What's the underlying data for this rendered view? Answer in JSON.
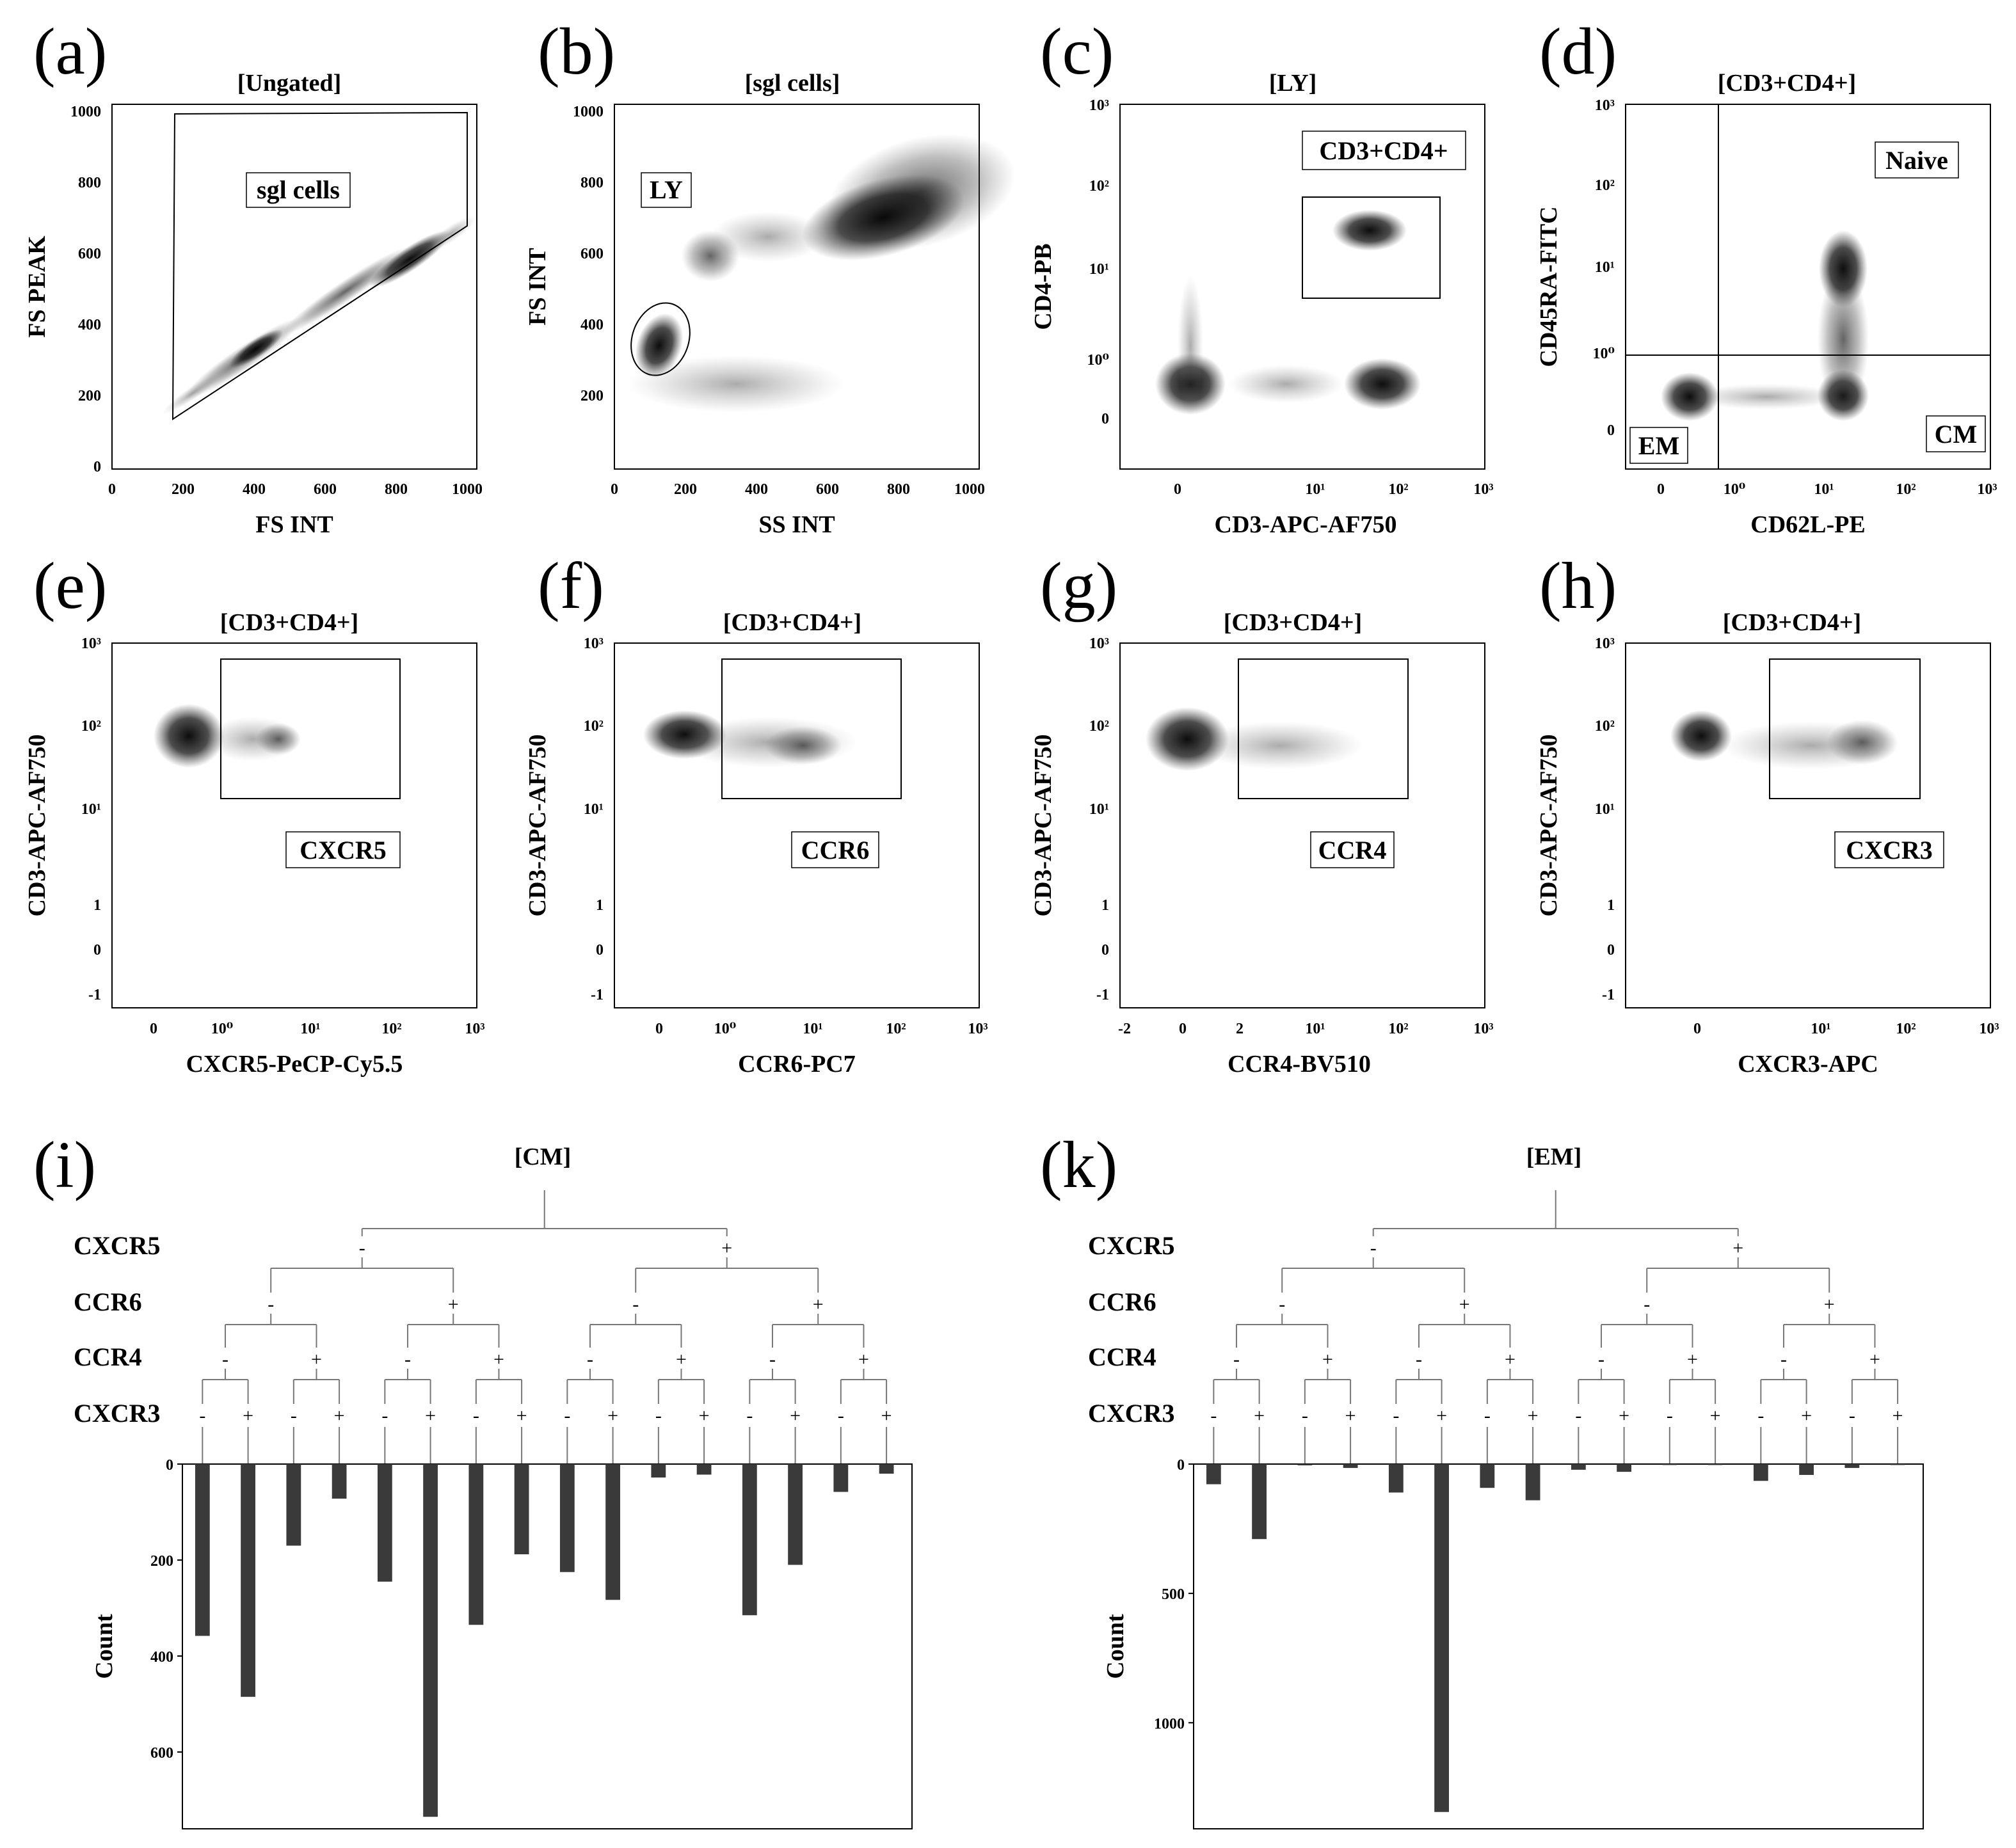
{
  "figure": {
    "panels": {
      "a": {
        "letter": "(a)",
        "title": "[Ungated]",
        "xlabel": "FS INT",
        "ylabel": "FS PEAK",
        "gate": "sgl cells",
        "xticks": [
          "0",
          "200",
          "400",
          "600",
          "800",
          "1000"
        ],
        "yticks": [
          "0",
          "200",
          "400",
          "600",
          "800",
          "1000"
        ]
      },
      "b": {
        "letter": "(b)",
        "title": "[sgl cells]",
        "xlabel": "SS INT",
        "ylabel": "FS INT",
        "gate": "LY",
        "xticks": [
          "0",
          "200",
          "400",
          "600",
          "800",
          "1000"
        ],
        "yticks": [
          "200",
          "400",
          "600",
          "800",
          "1000"
        ]
      },
      "c": {
        "letter": "(c)",
        "title": "[LY]",
        "xlabel": "CD3-APC-AF750",
        "ylabel": "CD4-PB",
        "gate": "CD3+CD4+",
        "xticks": [
          "0",
          "10¹",
          "10²",
          "10³"
        ],
        "yticks": [
          "0",
          "10⁰",
          "10¹",
          "10²",
          "10³"
        ]
      },
      "d": {
        "letter": "(d)",
        "title": "[CD3+CD4+]",
        "xlabel": "CD62L-PE",
        "ylabel": "CD45RA-FITC",
        "gates": [
          "Naive",
          "EM",
          "CM"
        ],
        "xticks": [
          "0",
          "10⁰",
          "10¹",
          "10²",
          "10³"
        ],
        "yticks": [
          "0",
          "10⁰",
          "10¹",
          "10²",
          "10³"
        ]
      },
      "e": {
        "letter": "(e)",
        "title": "[CD3+CD4+]",
        "xlabel": "CXCR5-PeCP-Cy5.5",
        "ylabel": "CD3-APC-AF750",
        "gate": "CXCR5",
        "xticks": [
          "0",
          "10⁰",
          "10¹",
          "10²",
          "10³"
        ],
        "yticks": [
          "-1",
          "0",
          "1",
          "10¹",
          "10²",
          "10³"
        ]
      },
      "f": {
        "letter": "(f)",
        "title": "[CD3+CD4+]",
        "xlabel": "CCR6-PC7",
        "ylabel": "CD3-APC-AF750",
        "gate": "CCR6",
        "xticks": [
          "0",
          "10⁰",
          "10¹",
          "10²",
          "10³"
        ],
        "yticks": [
          "-1",
          "0",
          "1",
          "10¹",
          "10²",
          "10³"
        ]
      },
      "g": {
        "letter": "(g)",
        "title": "[CD3+CD4+]",
        "xlabel": "CCR4-BV510",
        "ylabel": "CD3-APC-AF750",
        "gate": "CCR4",
        "xticks": [
          "-2",
          "0",
          "2",
          "10¹",
          "10²",
          "10³"
        ],
        "yticks": [
          "-1",
          "0",
          "1",
          "10¹",
          "10²",
          "10³"
        ]
      },
      "h": {
        "letter": "(h)",
        "title": "[CD3+CD4+]",
        "xlabel": "CXCR3-APC",
        "ylabel": "CD3-APC-AF750",
        "gate": "CXCR3",
        "xticks": [
          "0",
          "10¹",
          "10²",
          "10³"
        ],
        "yticks": [
          "-1",
          "0",
          "1",
          "10¹",
          "10²",
          "10³"
        ]
      }
    },
    "tree_levels": [
      "CXCR5",
      "CCR6",
      "CCR4",
      "CXCR3"
    ],
    "signs": {
      "neg": "-",
      "pos": "+"
    }
  },
  "chart_data": [
    {
      "type": "bar",
      "panel": "i",
      "letter": "(i)",
      "title": "[CM]",
      "ylabel": "Count",
      "orientation": "downward",
      "ylim": [
        0,
        760
      ],
      "yticks": [
        0,
        200,
        400,
        600
      ],
      "categories": [
        "-/-/-/-",
        "-/-/-/+",
        "-/-/+/-",
        "-/-/+/+",
        "-/+/-/-",
        "-/+/-/+",
        "-/+/+/-",
        "-/+/+/+",
        "+/-/-/-",
        "+/-/-/+",
        "+/-/+/-",
        "+/-/+/+",
        "+/+/-/-",
        "+/+/-/+",
        "+/+/+/-",
        "+/+/+/+"
      ],
      "values": [
        358,
        485,
        170,
        72,
        245,
        735,
        335,
        188,
        225,
        283,
        28,
        22,
        315,
        210,
        58,
        20
      ]
    },
    {
      "type": "bar",
      "panel": "k",
      "letter": "(k)",
      "title": "[EM]",
      "ylabel": "Count",
      "orientation": "downward",
      "ylim": [
        0,
        1410
      ],
      "yticks": [
        0,
        500,
        1000
      ],
      "categories": [
        "-/-/-/-",
        "-/-/-/+",
        "-/-/+/-",
        "-/-/+/+",
        "-/+/-/-",
        "-/+/-/+",
        "-/+/+/-",
        "-/+/+/+",
        "+/-/-/-",
        "+/-/-/+",
        "+/-/+/-",
        "+/-/+/+",
        "+/+/-/-",
        "+/+/-/+",
        "+/+/+/-",
        "+/+/+/+"
      ],
      "values": [
        78,
        290,
        5,
        15,
        110,
        1345,
        92,
        140,
        22,
        30,
        3,
        3,
        65,
        42,
        15,
        2
      ]
    }
  ]
}
